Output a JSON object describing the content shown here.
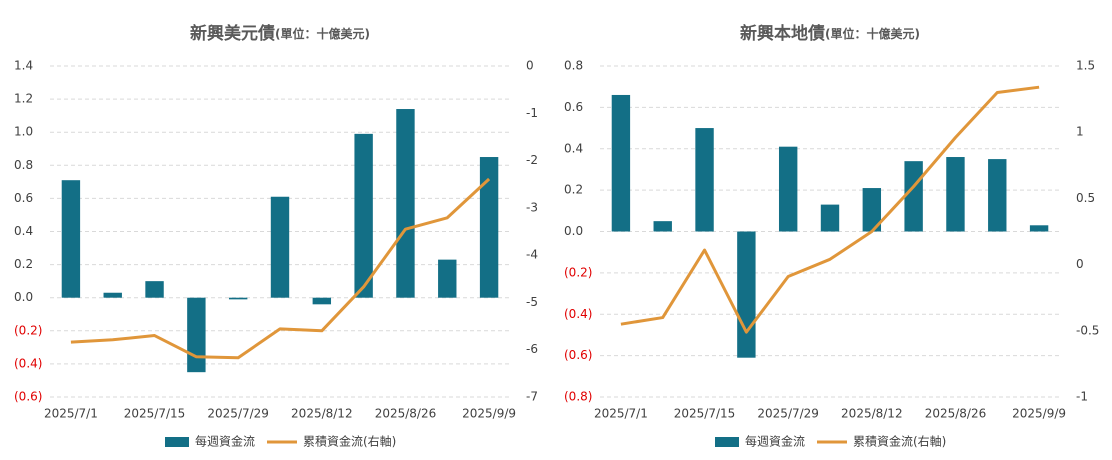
{
  "chart_data": [
    {
      "type": "bar_line",
      "title": "新興美元債",
      "subtitle": "(單位：十億美元)",
      "categories": [
        "2025/7/1",
        null,
        "2025/7/15",
        null,
        "2025/7/29",
        null,
        "2025/8/12",
        null,
        "2025/8/26",
        null,
        "2025/9/9"
      ],
      "series": [
        {
          "name": "每週資金流",
          "type": "bar",
          "color": "#136f86",
          "values": [
            0.71,
            0.03,
            0.1,
            -0.45,
            -0.01,
            0.61,
            -0.04,
            0.99,
            1.14,
            0.23,
            0.85
          ]
        },
        {
          "name": "累積資金流(右軸)",
          "type": "line",
          "axis": "y2",
          "color": "#e0963a",
          "values": [
            -5.84,
            -5.79,
            -5.7,
            -6.15,
            -6.17,
            -5.56,
            -5.6,
            -4.67,
            -3.45,
            -3.21,
            -2.39
          ]
        }
      ],
      "ylim": [
        -0.6,
        1.4
      ],
      "yticks": [
        {
          "value": -0.6,
          "label": "(0.6)"
        },
        {
          "value": -0.4,
          "label": "(0.4)"
        },
        {
          "value": -0.2,
          "label": "(0.2)"
        },
        {
          "value": 0,
          "label": "0.0"
        },
        0.2,
        0.4,
        0.6,
        0.8,
        {
          "value": 1,
          "label": "1.0"
        },
        1.2,
        1.4
      ],
      "y2lim": [
        -7,
        0
      ],
      "y2ticks": [
        -7,
        -6,
        -5,
        -4,
        -3,
        -2,
        -1,
        0
      ],
      "grid": true,
      "negative_tick_color": "#e00000",
      "legend": "bottom"
    },
    {
      "type": "bar_line",
      "title": "新興本地債",
      "subtitle": "(單位：十億美元)",
      "categories": [
        "2025/7/1",
        null,
        "2025/7/15",
        null,
        "2025/7/29",
        null,
        "2025/8/12",
        null,
        "2025/8/26",
        null,
        "2025/9/9"
      ],
      "series": [
        {
          "name": "每週資金流",
          "type": "bar",
          "color": "#136f86",
          "values": [
            0.66,
            0.05,
            0.5,
            -0.61,
            0.41,
            0.13,
            0.21,
            0.34,
            0.36,
            0.35,
            0.03
          ]
        },
        {
          "name": "累積資金流(右軸)",
          "type": "line",
          "axis": "y2",
          "color": "#e0963a",
          "values": [
            -0.45,
            -0.4,
            0.11,
            -0.51,
            -0.09,
            0.04,
            0.25,
            0.59,
            0.96,
            1.3,
            1.34
          ]
        }
      ],
      "ylim": [
        -0.8,
        0.8
      ],
      "yticks": [
        {
          "value": -0.8,
          "label": "(0.8)"
        },
        {
          "value": -0.6,
          "label": "(0.6)"
        },
        {
          "value": -0.4,
          "label": "(0.4)"
        },
        {
          "value": -0.2,
          "label": "(0.2)"
        },
        {
          "value": 0,
          "label": "0.0"
        },
        0.2,
        0.4,
        0.6,
        0.8
      ],
      "y2lim": [
        -1,
        1.5
      ],
      "y2ticks": [
        -1,
        -0.5,
        0,
        0.5,
        1,
        1.5
      ],
      "grid": true,
      "negative_tick_color": "#e00000",
      "legend": "bottom"
    }
  ]
}
